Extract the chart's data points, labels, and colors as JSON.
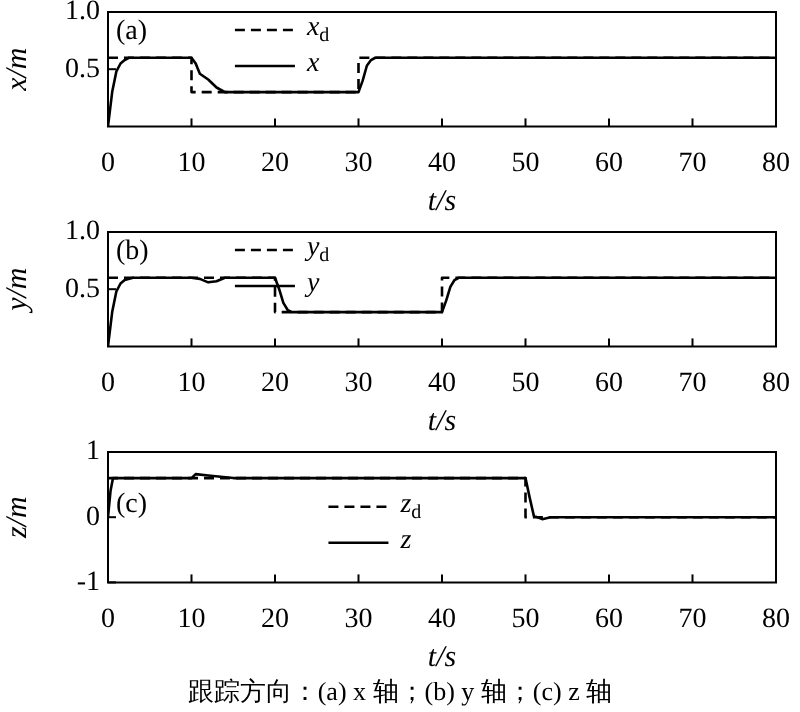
{
  "chart_data": [
    {
      "type": "line",
      "xlabel": "t/s",
      "ylabel": "x/m",
      "xlim": [
        0,
        80
      ],
      "xticks": [
        0,
        10,
        20,
        30,
        40,
        50,
        60,
        70,
        80
      ],
      "ylim": [
        0,
        1
      ],
      "yticks": [
        0.5,
        {
          "value": 1,
          "label": "1.0"
        }
      ],
      "grid": false,
      "legend": "top",
      "annotations": [
        "(a)"
      ],
      "series": [
        {
          "name": "x$_{d}$",
          "color": "#000000",
          "line_style": "dashed",
          "x": [
            0,
            10,
            10,
            30,
            30,
            80
          ],
          "values": [
            0.6,
            0.6,
            0.3,
            0.3,
            0.6,
            0.6
          ]
        },
        {
          "name": "x",
          "color": "#000000",
          "line_style": "solid",
          "x": [
            0,
            0.5,
            1,
            1.5,
            2,
            2.5,
            3,
            10,
            10.5,
            11,
            12,
            13,
            14,
            30,
            30.5,
            31,
            31.5,
            32,
            80
          ],
          "values": [
            0,
            0.3,
            0.48,
            0.55,
            0.58,
            0.6,
            0.6,
            0.6,
            0.55,
            0.46,
            0.41,
            0.34,
            0.3,
            0.3,
            0.4,
            0.53,
            0.58,
            0.6,
            0.6
          ]
        }
      ]
    },
    {
      "type": "line",
      "xlabel": "t/s",
      "ylabel": "y/m",
      "xlim": [
        0,
        80
      ],
      "xticks": [
        0,
        10,
        20,
        30,
        40,
        50,
        60,
        70,
        80
      ],
      "ylim": [
        0,
        1
      ],
      "yticks": [
        0.5,
        {
          "value": 1,
          "label": "1.0"
        }
      ],
      "grid": false,
      "legend": "top",
      "annotations": [
        "(b)"
      ],
      "series": [
        {
          "name": "y$_{d}$",
          "color": "#000000",
          "line_style": "dashed",
          "x": [
            0,
            20,
            20,
            40,
            40,
            80
          ],
          "values": [
            0.6,
            0.6,
            0.3,
            0.3,
            0.6,
            0.6
          ]
        },
        {
          "name": "y",
          "color": "#000000",
          "line_style": "solid",
          "x": [
            0,
            0.5,
            1,
            1.5,
            2,
            3,
            10,
            11,
            12,
            13,
            14,
            20,
            20.5,
            21,
            21.5,
            22,
            40,
            40.5,
            41,
            41.5,
            42,
            80
          ],
          "values": [
            0,
            0.3,
            0.48,
            0.55,
            0.58,
            0.6,
            0.6,
            0.59,
            0.56,
            0.57,
            0.6,
            0.6,
            0.5,
            0.38,
            0.32,
            0.3,
            0.3,
            0.4,
            0.52,
            0.58,
            0.6,
            0.6
          ]
        }
      ]
    },
    {
      "type": "line",
      "xlabel": "t/s",
      "ylabel": "z/m",
      "xlim": [
        0,
        80
      ],
      "xticks": [
        0,
        10,
        20,
        30,
        40,
        50,
        60,
        70,
        80
      ],
      "ylim": [
        -1,
        1
      ],
      "yticks": [
        -1,
        0,
        1
      ],
      "grid": false,
      "legend": "center",
      "annotations": [
        "(c)",
        "跟踪方向：(a) x 轴；(b) y 轴；(c) z 轴"
      ],
      "series": [
        {
          "name": "z$_{d}$",
          "color": "#000000",
          "line_style": "dashed",
          "x": [
            0,
            50,
            50,
            80
          ],
          "values": [
            0.6,
            0.6,
            0,
            0
          ]
        },
        {
          "name": "z",
          "color": "#000000",
          "line_style": "solid",
          "x": [
            0,
            0.3,
            0.6,
            10,
            10.5,
            12,
            15,
            50,
            50.5,
            51,
            52,
            53,
            80
          ],
          "values": [
            0,
            0.4,
            0.6,
            0.6,
            0.66,
            0.64,
            0.6,
            0.6,
            0.3,
            0.02,
            -0.03,
            0,
            0
          ]
        }
      ]
    }
  ]
}
